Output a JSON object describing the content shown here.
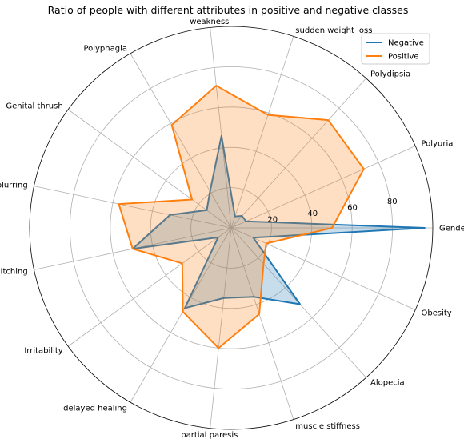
{
  "chart_data": {
    "type": "radar",
    "title": "Ratio of people with different attributes in positive and negative classes",
    "categories": [
      "Gender",
      "Polyuria",
      "Polydipsia",
      "sudden weight loss",
      "weakness",
      "Polyphagia",
      "Genital thrush",
      "visual blurring",
      "Itching",
      "Irritability",
      "delayed healing",
      "partial paresis",
      "muscle stiffness",
      "Alopecia",
      "Obesity"
    ],
    "rlim": [
      0,
      100
    ],
    "rticks": [
      20,
      40,
      60,
      80
    ],
    "rtick_labels": [
      "20",
      "40",
      "60",
      "80"
    ],
    "grid": true,
    "legend_position": "top-right",
    "series": [
      {
        "name": "Negative",
        "color": "#1f77b4",
        "values": [
          96,
          8,
          8,
          6,
          46,
          21,
          15,
          31,
          50,
          8,
          46,
          35,
          36,
          51,
          12
        ]
      },
      {
        "name": "Positive",
        "color": "#ff7f0e",
        "values": [
          50,
          72,
          72,
          59,
          71,
          59,
          24,
          57,
          50,
          30,
          48,
          60,
          45,
          24,
          19
        ]
      }
    ]
  }
}
